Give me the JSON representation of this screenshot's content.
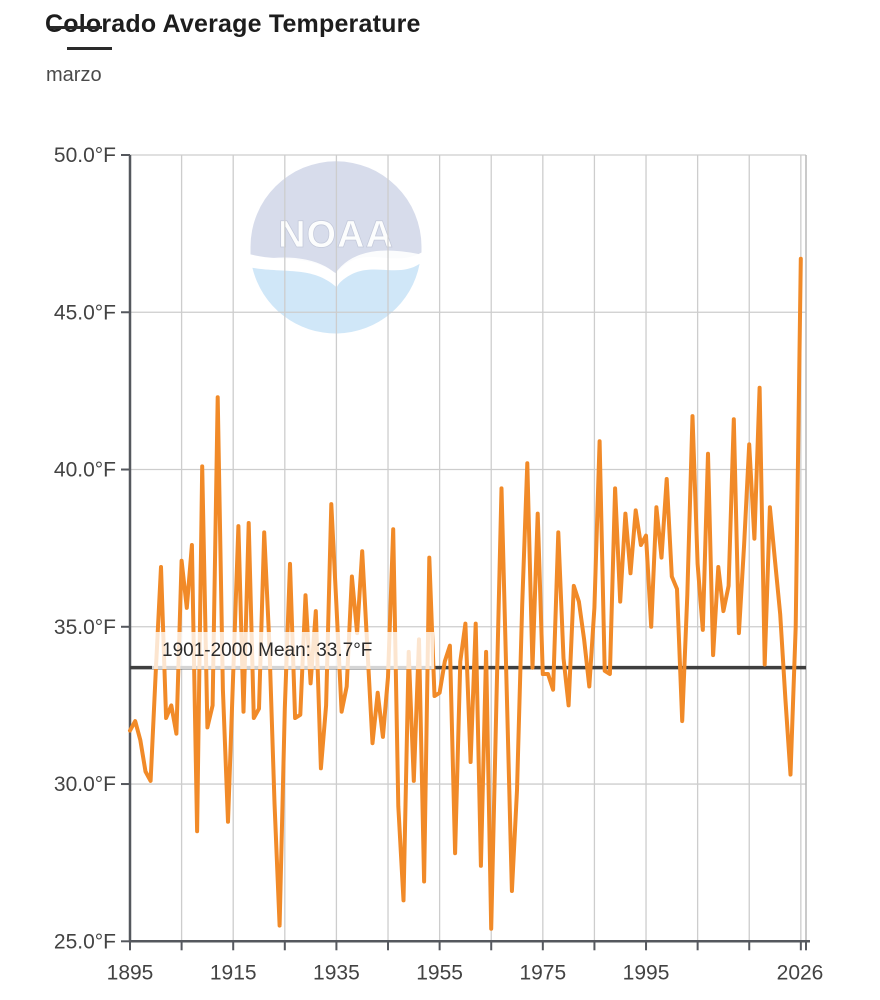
{
  "header": {
    "title": "Colorado Average Temperature",
    "subtitle": "marzo"
  },
  "watermark": {
    "text": "NOAA"
  },
  "mean_annotation": {
    "label": "1901-2000 Mean: 33.7°F",
    "period": "1901-2000",
    "value": 33.7
  },
  "colors": {
    "line": "#f18a28",
    "mean_line": "#3f3f3f",
    "grid": "#cdcdcd",
    "plot_right_border": "#b9b9b9",
    "axis": "#55585e",
    "tick_text": "#434343",
    "title_text": "#1d1d1d",
    "logo_dome": "#9aa8cc",
    "logo_swoosh": "#a9d3f2"
  },
  "axes": {
    "y": {
      "tick_labels": [
        "50.0°F",
        "45.0°F",
        "40.0°F",
        "35.0°F",
        "30.0°F",
        "25.0°F"
      ],
      "tick_values": [
        50,
        45,
        40,
        35,
        30,
        25
      ]
    },
    "x": {
      "labels": [
        "1895",
        "1915",
        "1935",
        "1955",
        "1975",
        "1995",
        "2026"
      ],
      "label_years": [
        1895,
        1915,
        1935,
        1955,
        1975,
        1995,
        2026
      ],
      "tick_start": 1895,
      "tick_step": 10,
      "tick_end": 2025,
      "edge_tick": 2026
    }
  },
  "chart_data": {
    "type": "line",
    "title": "Colorado Average Temperature",
    "subtitle": "marzo",
    "ylabel_suffix": "°F",
    "xlim": [
      1895,
      2026
    ],
    "ylim": [
      25,
      50
    ],
    "yticks": [
      25,
      30,
      35,
      40,
      45,
      50
    ],
    "grid": true,
    "legend": "none",
    "mean_line": {
      "label": "1901-2000 Mean: 33.7°F",
      "value": 33.7
    },
    "x": [
      1895,
      1896,
      1897,
      1898,
      1899,
      1900,
      1901,
      1902,
      1903,
      1904,
      1905,
      1906,
      1907,
      1908,
      1909,
      1910,
      1911,
      1912,
      1913,
      1914,
      1915,
      1916,
      1917,
      1918,
      1919,
      1920,
      1921,
      1922,
      1923,
      1924,
      1925,
      1926,
      1927,
      1928,
      1929,
      1930,
      1931,
      1932,
      1933,
      1934,
      1935,
      1936,
      1937,
      1938,
      1939,
      1940,
      1941,
      1942,
      1943,
      1944,
      1945,
      1946,
      1947,
      1948,
      1949,
      1950,
      1951,
      1952,
      1953,
      1954,
      1955,
      1956,
      1957,
      1958,
      1959,
      1960,
      1961,
      1962,
      1963,
      1964,
      1965,
      1966,
      1967,
      1968,
      1969,
      1970,
      1971,
      1972,
      1973,
      1974,
      1975,
      1976,
      1977,
      1978,
      1979,
      1980,
      1981,
      1982,
      1983,
      1984,
      1985,
      1986,
      1987,
      1988,
      1989,
      1990,
      1991,
      1992,
      1993,
      1994,
      1995,
      1996,
      1997,
      1998,
      1999,
      2000,
      2001,
      2002,
      2003,
      2004,
      2005,
      2006,
      2007,
      2008,
      2009,
      2010,
      2011,
      2012,
      2013,
      2014,
      2015,
      2016,
      2017,
      2018,
      2019,
      2020,
      2021,
      2022,
      2023,
      2024,
      2025
    ],
    "series": [
      {
        "name": "Average Temperature (°F)",
        "values": [
          31.7,
          32.0,
          31.4,
          30.4,
          30.1,
          33.6,
          36.9,
          32.1,
          32.5,
          31.6,
          37.1,
          35.6,
          37.6,
          28.5,
          40.1,
          31.8,
          32.5,
          42.3,
          33.0,
          28.8,
          33.5,
          38.2,
          32.3,
          38.3,
          32.1,
          32.4,
          38.0,
          34.5,
          29.4,
          25.5,
          32.4,
          37.0,
          32.1,
          32.2,
          36.0,
          33.2,
          35.5,
          30.5,
          32.5,
          38.9,
          35.7,
          32.3,
          33.1,
          36.6,
          34.8,
          37.4,
          34.3,
          31.3,
          32.9,
          31.5,
          33.4,
          38.1,
          29.3,
          26.3,
          34.2,
          30.1,
          34.6,
          26.9,
          37.2,
          32.8,
          32.9,
          33.9,
          34.4,
          27.8,
          33.9,
          35.1,
          30.7,
          35.1,
          27.4,
          34.2,
          25.4,
          32.6,
          39.4,
          33.0,
          26.6,
          29.8,
          35.7,
          40.2,
          33.7,
          38.6,
          33.5,
          33.5,
          33.0,
          38.0,
          34.0,
          32.5,
          36.3,
          35.8,
          34.6,
          33.1,
          35.6,
          40.9,
          33.6,
          33.5,
          39.4,
          35.8,
          38.6,
          36.7,
          38.7,
          37.6,
          37.9,
          35.0,
          38.8,
          37.2,
          39.7,
          36.6,
          36.2,
          32.0,
          36.0,
          41.7,
          37.0,
          34.9,
          40.5,
          34.1,
          36.9,
          35.5,
          36.3,
          41.6,
          34.8,
          37.6,
          40.8,
          37.8,
          42.6,
          33.8,
          38.8,
          37.1,
          35.4,
          32.7,
          30.3,
          35.0,
          46.7
        ]
      }
    ]
  }
}
